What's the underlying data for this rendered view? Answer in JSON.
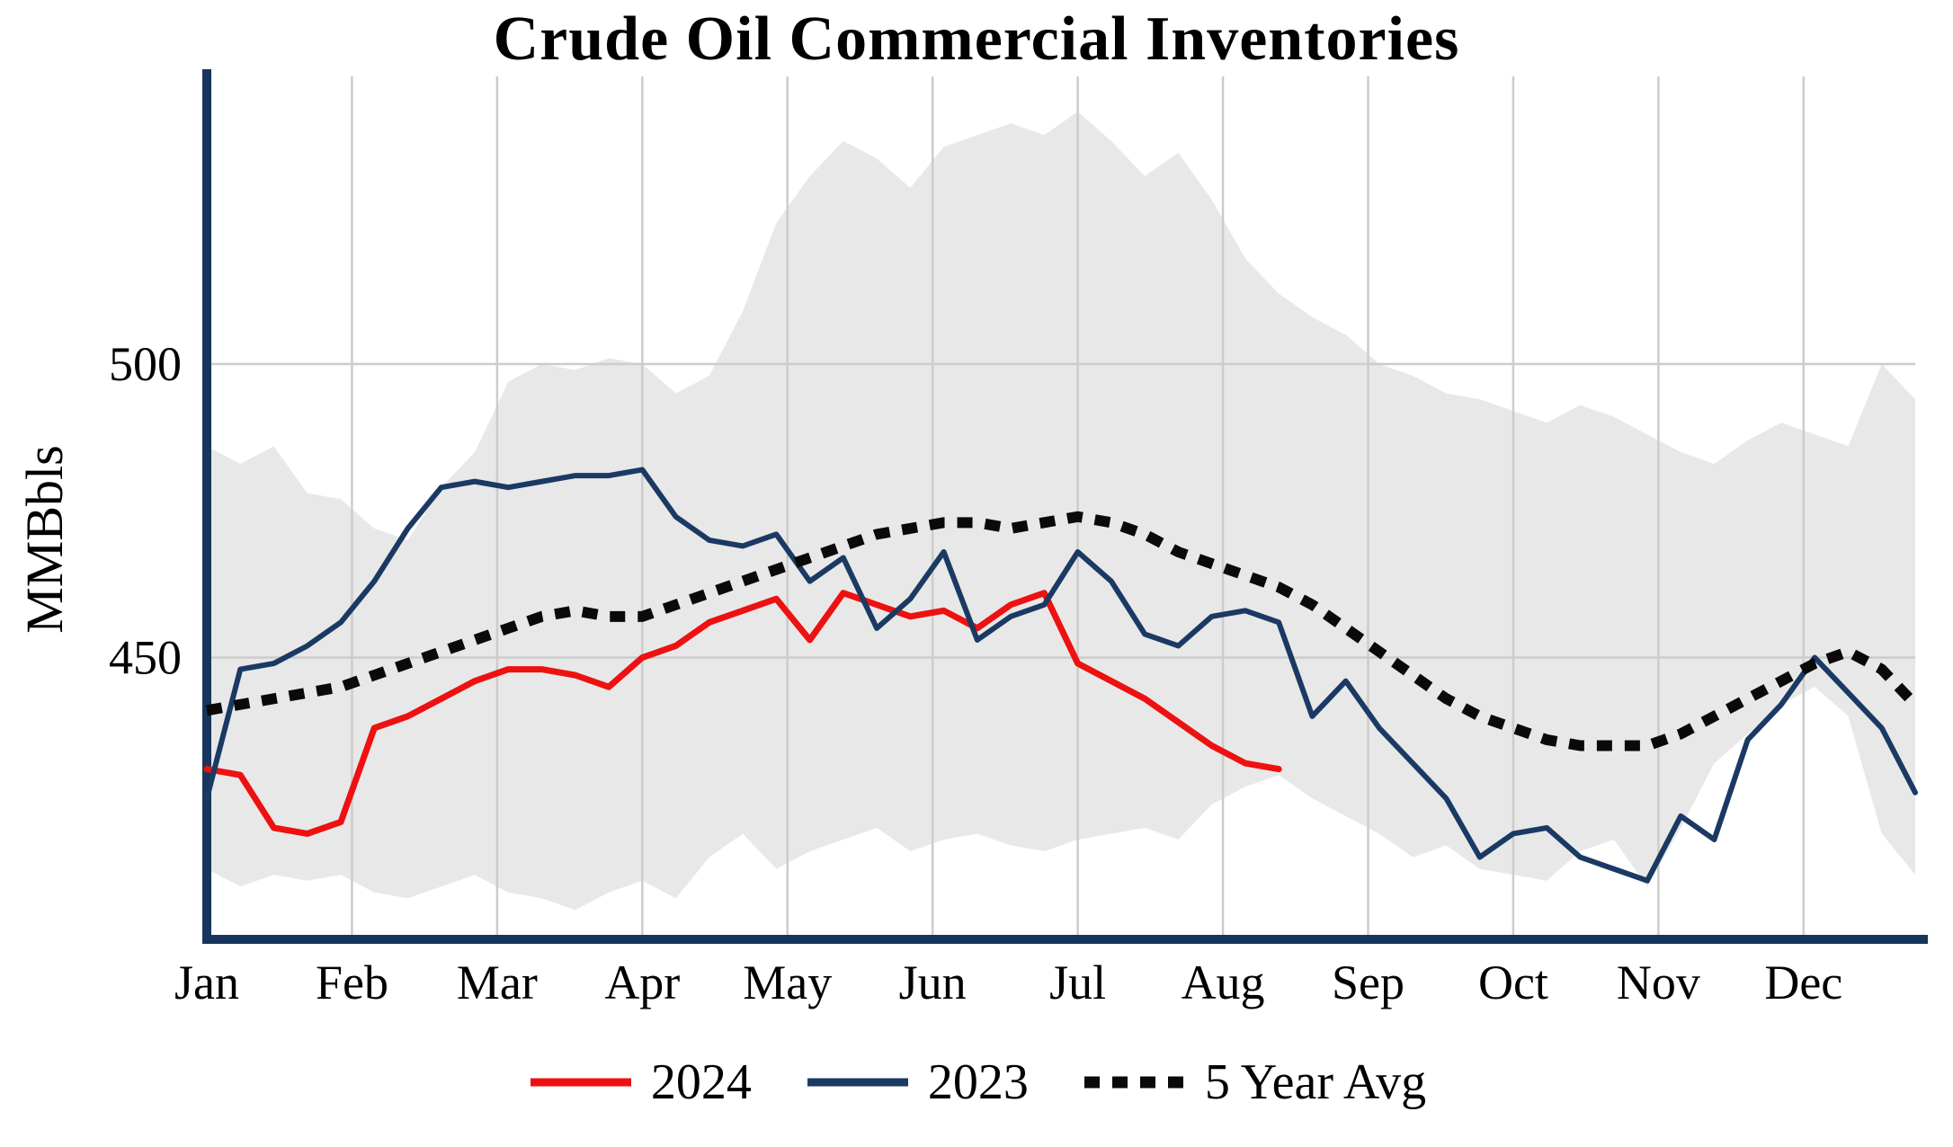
{
  "chart_data": {
    "type": "line",
    "title": "Crude Oil Commercial Inventories",
    "ylabel": "MMBbls",
    "ylim": [
      402,
      549
    ],
    "yticks": [
      450,
      500
    ],
    "months": [
      "Jan",
      "Feb",
      "Mar",
      "Apr",
      "May",
      "Jun",
      "Jul",
      "Aug",
      "Sep",
      "Oct",
      "Nov",
      "Dec"
    ],
    "weeks": 52,
    "axis_color": "#17365d",
    "grid_color": "#cccccc",
    "background": "#ffffff",
    "legend_position": "bottom",
    "band": {
      "name": "5-year-range",
      "color": "#e8e8e8",
      "upper": [
        486,
        483,
        486,
        478,
        477,
        472,
        470,
        479,
        485,
        497,
        500,
        499,
        501,
        500,
        495,
        498,
        509,
        524,
        532,
        538,
        535,
        530,
        537,
        539,
        541,
        539,
        543,
        538,
        532,
        536,
        528,
        518,
        512,
        508,
        505,
        500,
        498,
        495,
        494,
        492,
        490,
        493,
        491,
        488,
        485,
        483,
        487,
        490,
        488,
        486,
        500,
        494
      ],
      "lower": [
        414,
        411,
        413,
        412,
        413,
        410,
        409,
        411,
        413,
        410,
        409,
        407,
        410,
        412,
        409,
        416,
        420,
        414,
        417,
        419,
        421,
        417,
        419,
        420,
        418,
        417,
        419,
        420,
        421,
        419,
        425,
        428,
        430,
        426,
        423,
        420,
        416,
        418,
        414,
        413,
        412,
        417,
        419,
        411,
        421,
        432,
        437,
        442,
        445,
        440,
        420,
        413
      ]
    },
    "series": [
      {
        "name": "2024",
        "color": "#ee1111",
        "width": 7,
        "values": [
          431,
          430,
          421,
          420,
          422,
          438,
          440,
          443,
          446,
          448,
          448,
          447,
          445,
          450,
          452,
          456,
          458,
          460,
          453,
          461,
          459,
          457,
          458,
          455,
          459,
          461,
          449,
          446,
          443,
          439,
          435,
          432,
          431
        ]
      },
      {
        "name": "2023",
        "color": "#1a3a63",
        "width": 6,
        "values": [
          426,
          448,
          449,
          452,
          456,
          463,
          472,
          479,
          480,
          479,
          480,
          481,
          481,
          482,
          474,
          470,
          469,
          471,
          463,
          467,
          455,
          460,
          468,
          453,
          457,
          459,
          468,
          463,
          454,
          452,
          457,
          458,
          456,
          440,
          446,
          438,
          432,
          426,
          416,
          420,
          421,
          416,
          414,
          412,
          423,
          419,
          436,
          442,
          450,
          444,
          438,
          427
        ]
      },
      {
        "name": "5 Year Avg",
        "color": "#0a0a0a",
        "width": 12,
        "dash": "17 14",
        "values": [
          441,
          442,
          443,
          444,
          445,
          447,
          449,
          451,
          453,
          455,
          457,
          458,
          457,
          457,
          459,
          461,
          463,
          465,
          467,
          469,
          471,
          472,
          473,
          473,
          472,
          473,
          474,
          473,
          471,
          468,
          466,
          464,
          462,
          459,
          455,
          451,
          447,
          443,
          440,
          438,
          436,
          435,
          435,
          435,
          437,
          440,
          443,
          446,
          449,
          451,
          448,
          442
        ]
      }
    ]
  }
}
